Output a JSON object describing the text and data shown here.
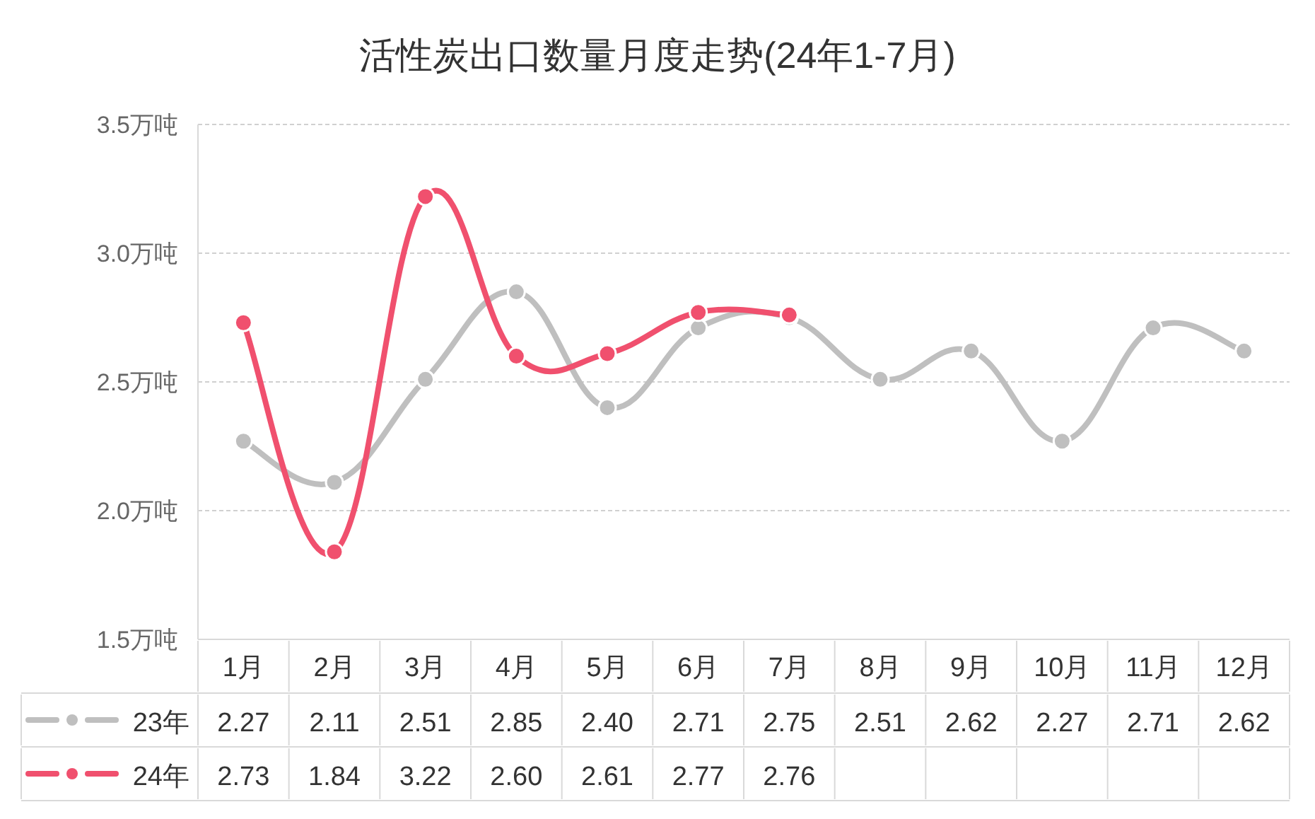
{
  "chart_data": {
    "type": "line",
    "title": "活性炭出口数量月度走势(24年1-7月)",
    "categories": [
      "1月",
      "2月",
      "3月",
      "4月",
      "5月",
      "6月",
      "7月",
      "8月",
      "9月",
      "10月",
      "11月",
      "12月"
    ],
    "series": [
      {
        "name": "23年",
        "color": "#bfbfbf",
        "values": [
          2.27,
          2.11,
          2.51,
          2.85,
          2.4,
          2.71,
          2.75,
          2.51,
          2.62,
          2.27,
          2.71,
          2.62
        ],
        "value_labels": [
          "2.27",
          "2.11",
          "2.51",
          "2.85",
          "2.40",
          "2.71",
          "2.75",
          "2.51",
          "2.62",
          "2.27",
          "2.71",
          "2.62"
        ]
      },
      {
        "name": "24年",
        "color": "#f0506e",
        "values": [
          2.73,
          1.84,
          3.22,
          2.6,
          2.61,
          2.77,
          2.76,
          null,
          null,
          null,
          null,
          null
        ],
        "value_labels": [
          "2.73",
          "1.84",
          "3.22",
          "2.60",
          "2.61",
          "2.77",
          "2.76",
          null,
          null,
          null,
          null,
          null
        ]
      }
    ],
    "ylim": [
      1.5,
      3.5
    ],
    "yticks": [
      {
        "value": 1.5,
        "label": "1.5万吨"
      },
      {
        "value": 2.0,
        "label": "2.0万吨"
      },
      {
        "value": 2.5,
        "label": "2.5万吨"
      },
      {
        "value": 3.0,
        "label": "3.0万吨"
      },
      {
        "value": 3.5,
        "label": "3.5万吨"
      }
    ],
    "grid": "y",
    "legend": "bottom",
    "marker": "circle",
    "line_style": "solid"
  }
}
